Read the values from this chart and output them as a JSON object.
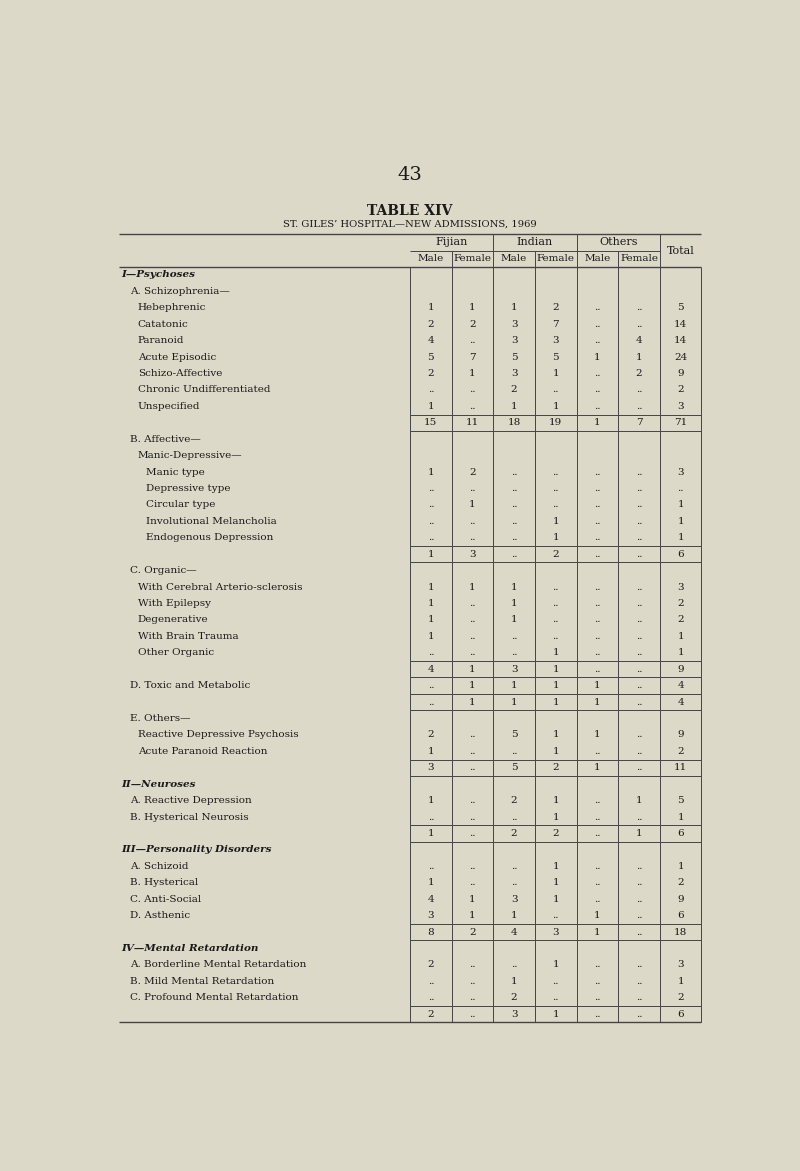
{
  "page_number": "43",
  "table_title": "TABLE XIV",
  "table_subtitle": "ST. GILES’ HOSPITAL—NEW ADMISSIONS, 1969",
  "bg_color": "#ddd9c8",
  "rows": [
    {
      "label": "I—Psychoses",
      "indent": 0,
      "style": "sc",
      "values": [
        "",
        "",
        "",
        "",
        "",
        "",
        ""
      ]
    },
    {
      "label": "A. Schizophrenia—",
      "indent": 1,
      "style": "normal",
      "values": [
        "",
        "",
        "",
        "",
        "",
        "",
        ""
      ]
    },
    {
      "label": "Hebephrenic",
      "indent": 2,
      "style": "normal",
      "values": [
        "1",
        "1",
        "1",
        "2",
        "..",
        "..",
        "5"
      ]
    },
    {
      "label": "Catatonic",
      "indent": 2,
      "style": "normal",
      "values": [
        "2",
        "2",
        "3",
        "7",
        "..",
        "..",
        "14"
      ]
    },
    {
      "label": "Paranoid",
      "indent": 2,
      "style": "normal",
      "values": [
        "4",
        "..",
        "3",
        "3",
        "..",
        "4",
        "14"
      ]
    },
    {
      "label": "Acute Episodic",
      "indent": 2,
      "style": "normal",
      "values": [
        "5",
        "7",
        "5",
        "5",
        "1",
        "1",
        "24"
      ]
    },
    {
      "label": "Schizo-Affective",
      "indent": 2,
      "style": "normal",
      "values": [
        "2",
        "1",
        "3",
        "1",
        "..",
        "2",
        "9"
      ]
    },
    {
      "label": "Chronic Undifferentiated",
      "indent": 2,
      "style": "normal",
      "values": [
        "..",
        "..",
        "2",
        "..",
        "..",
        "..",
        "2"
      ]
    },
    {
      "label": "Unspecified",
      "indent": 2,
      "style": "normal",
      "values": [
        "1",
        "..",
        "1",
        "1",
        "..",
        "..",
        "3"
      ]
    },
    {
      "label": "",
      "indent": 0,
      "style": "subtotal",
      "values": [
        "15",
        "11",
        "18",
        "19",
        "1",
        "7",
        "71"
      ]
    },
    {
      "label": "B. Affective—",
      "indent": 1,
      "style": "normal",
      "values": [
        "",
        "",
        "",
        "",
        "",
        "",
        ""
      ]
    },
    {
      "label": "Manic-Depressive—",
      "indent": 2,
      "style": "normal",
      "values": [
        "",
        "",
        "",
        "",
        "",
        "",
        ""
      ]
    },
    {
      "label": "Manic type",
      "indent": 3,
      "style": "normal",
      "values": [
        "1",
        "2",
        "..",
        "..",
        "..",
        "..",
        "3"
      ]
    },
    {
      "label": "Depressive type",
      "indent": 3,
      "style": "normal",
      "values": [
        "..",
        "..",
        "..",
        "..",
        "..",
        "..",
        ".."
      ]
    },
    {
      "label": "Circular type",
      "indent": 3,
      "style": "normal",
      "values": [
        "..",
        "1",
        "..",
        "..",
        "..",
        "..",
        "1"
      ]
    },
    {
      "label": "Involutional Melancholia",
      "indent": 3,
      "style": "normal",
      "values": [
        "..",
        "..",
        "..",
        "1",
        "..",
        "..",
        "1"
      ]
    },
    {
      "label": "Endogenous Depression",
      "indent": 3,
      "style": "normal",
      "values": [
        "..",
        "..",
        "..",
        "1",
        "..",
        "..",
        "1"
      ]
    },
    {
      "label": "",
      "indent": 0,
      "style": "subtotal",
      "values": [
        "1",
        "3",
        "..",
        "2",
        "..",
        "..",
        "6"
      ]
    },
    {
      "label": "C. Organic—",
      "indent": 1,
      "style": "normal",
      "values": [
        "",
        "",
        "",
        "",
        "",
        "",
        ""
      ]
    },
    {
      "label": "With Cerebral Arterio-sclerosis",
      "indent": 2,
      "style": "normal",
      "values": [
        "1",
        "1",
        "1",
        "..",
        "..",
        "..",
        "3"
      ]
    },
    {
      "label": "With Epilepsy",
      "indent": 2,
      "style": "normal",
      "values": [
        "1",
        "..",
        "1",
        "..",
        "..",
        "..",
        "2"
      ]
    },
    {
      "label": "Degenerative",
      "indent": 2,
      "style": "normal",
      "values": [
        "1",
        "..",
        "1",
        "..",
        "..",
        "..",
        "2"
      ]
    },
    {
      "label": "With Brain Trauma",
      "indent": 2,
      "style": "normal",
      "values": [
        "1",
        "..",
        "..",
        "..",
        "..",
        "..",
        "1"
      ]
    },
    {
      "label": "Other Organic",
      "indent": 2,
      "style": "normal",
      "values": [
        "..",
        "..",
        "..",
        "1",
        "..",
        "..",
        "1"
      ]
    },
    {
      "label": "",
      "indent": 0,
      "style": "subtotal",
      "values": [
        "4",
        "1",
        "3",
        "1",
        "..",
        "..",
        "9"
      ]
    },
    {
      "label": "D. Toxic and Metabolic",
      "indent": 1,
      "style": "normal",
      "values": [
        "..",
        "1",
        "1",
        "1",
        "1",
        "..",
        "4"
      ]
    },
    {
      "label": "",
      "indent": 0,
      "style": "subtotal",
      "values": [
        "..",
        "1",
        "1",
        "1",
        "1",
        "..",
        "4"
      ]
    },
    {
      "label": "E. Others—",
      "indent": 1,
      "style": "normal",
      "values": [
        "",
        "",
        "",
        "",
        "",
        "",
        ""
      ]
    },
    {
      "label": "Reactive Depressive Psychosis",
      "indent": 2,
      "style": "normal",
      "values": [
        "2",
        "..",
        "5",
        "1",
        "1",
        "..",
        "9"
      ]
    },
    {
      "label": "Acute Paranoid Reaction",
      "indent": 2,
      "style": "normal",
      "values": [
        "1",
        "..",
        "..",
        "1",
        "..",
        "..",
        "2"
      ]
    },
    {
      "label": "",
      "indent": 0,
      "style": "subtotal",
      "values": [
        "3",
        "..",
        "5",
        "2",
        "1",
        "..",
        "11"
      ]
    },
    {
      "label": "II—Neuroses",
      "indent": 0,
      "style": "sc",
      "values": [
        "",
        "",
        "",
        "",
        "",
        "",
        ""
      ]
    },
    {
      "label": "A. Reactive Depression",
      "indent": 1,
      "style": "normal",
      "values": [
        "1",
        "..",
        "2",
        "1",
        "..",
        "1",
        "5"
      ]
    },
    {
      "label": "B. Hysterical Neurosis",
      "indent": 1,
      "style": "normal",
      "values": [
        "..",
        "..",
        "..",
        "1",
        "..",
        "..",
        "1"
      ]
    },
    {
      "label": "",
      "indent": 0,
      "style": "subtotal",
      "values": [
        "1",
        "..",
        "2",
        "2",
        "..",
        "1",
        "6"
      ]
    },
    {
      "label": "III—Personality Disorders",
      "indent": 0,
      "style": "sc",
      "values": [
        "",
        "",
        "",
        "",
        "",
        "",
        ""
      ]
    },
    {
      "label": "A. Schizoid",
      "indent": 1,
      "style": "normal",
      "values": [
        "..",
        "..",
        "..",
        "1",
        "..",
        "..",
        "1"
      ]
    },
    {
      "label": "B. Hysterical",
      "indent": 1,
      "style": "normal",
      "values": [
        "1",
        "..",
        "..",
        "1",
        "..",
        "..",
        "2"
      ]
    },
    {
      "label": "C. Anti-Social",
      "indent": 1,
      "style": "normal",
      "values": [
        "4",
        "1",
        "3",
        "1",
        "..",
        "..",
        "9"
      ]
    },
    {
      "label": "D. Asthenic",
      "indent": 1,
      "style": "normal",
      "values": [
        "3",
        "1",
        "1",
        "..",
        "1",
        "..",
        "6"
      ]
    },
    {
      "label": "",
      "indent": 0,
      "style": "subtotal",
      "values": [
        "8",
        "2",
        "4",
        "3",
        "1",
        "..",
        "18"
      ]
    },
    {
      "label": "IV—Mental Retardation",
      "indent": 0,
      "style": "sc",
      "values": [
        "",
        "",
        "",
        "",
        "",
        "",
        ""
      ]
    },
    {
      "label": "A. Borderline Mental Retardation",
      "indent": 1,
      "style": "normal",
      "values": [
        "2",
        "..",
        "..",
        "1",
        "..",
        "..",
        "3"
      ]
    },
    {
      "label": "B. Mild Mental Retardation",
      "indent": 1,
      "style": "normal",
      "values": [
        "..",
        "..",
        "1",
        "..",
        "..",
        "..",
        "1"
      ]
    },
    {
      "label": "C. Profound Mental Retardation",
      "indent": 1,
      "style": "normal",
      "values": [
        "..",
        "..",
        "2",
        "..",
        "..",
        "..",
        "2"
      ]
    },
    {
      "label": "",
      "indent": 0,
      "style": "subtotal",
      "values": [
        "2",
        "..",
        "3",
        "1",
        "..",
        "..",
        "6"
      ]
    }
  ]
}
